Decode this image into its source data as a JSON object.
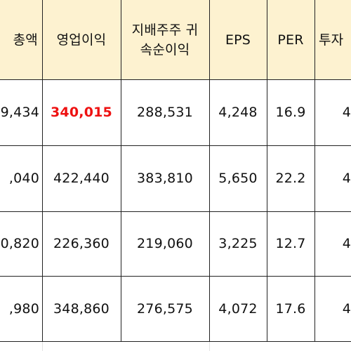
{
  "table": {
    "headers": [
      "총액",
      "영업이익",
      "지배주주 귀",
      "속순이익",
      "EPS",
      "PER",
      "투자"
    ],
    "rows": [
      {
        "c0": "9,434",
        "c1": "340,015",
        "c2": "288,531",
        "c3": "4,248",
        "c4": "16.9",
        "c5": "4"
      },
      {
        "c0": ",040",
        "c1": "422,440",
        "c2": "383,810",
        "c3": "5,650",
        "c4": "22.2",
        "c5": "4"
      },
      {
        "c0": "0,820",
        "c1": "226,360",
        "c2": "219,060",
        "c3": "3,225",
        "c4": "12.7",
        "c5": "4"
      },
      {
        "c0": ",980",
        "c1": "348,860",
        "c2": "276,575",
        "c3": "4,072",
        "c4": "17.6",
        "c5": "4"
      }
    ],
    "highlight_color": "#ee1111",
    "header_fill": "#fdf2d0"
  }
}
